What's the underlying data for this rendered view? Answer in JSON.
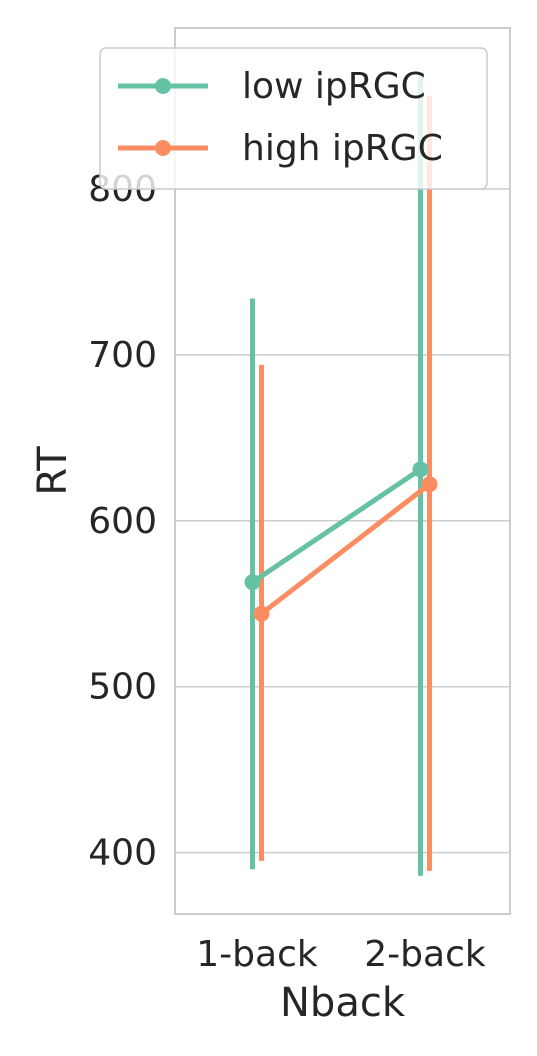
{
  "chart_data": {
    "type": "line",
    "title": "",
    "xlabel": "Nback",
    "ylabel": "RT",
    "categories": [
      "1-back",
      "2-back"
    ],
    "ylim": [
      363,
      897
    ],
    "yticks": [
      400,
      500,
      600,
      700,
      800
    ],
    "grid": "horizontal",
    "legend": "top-right",
    "series": [
      {
        "name": "low ipRGC",
        "color": "#66c2a5",
        "values": [
          563,
          631
        ],
        "ci_low": [
          390,
          386
        ],
        "ci_high": [
          734,
          870
        ]
      },
      {
        "name": "high ipRGC",
        "color": "#fc8d62",
        "values": [
          544,
          622
        ],
        "ci_low": [
          395,
          389
        ],
        "ci_high": [
          694,
          856
        ]
      }
    ]
  }
}
